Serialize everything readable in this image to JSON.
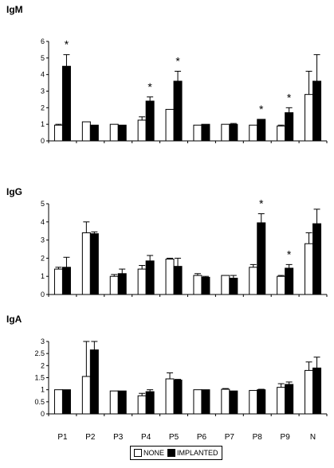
{
  "chart_data": [
    {
      "type": "bar",
      "title": "IgM",
      "categories": [
        "P1",
        "P2",
        "P3",
        "P4",
        "P5",
        "P6",
        "P7",
        "P8",
        "P9",
        "N"
      ],
      "ylim": [
        0,
        6
      ],
      "yticks": [
        "0",
        "1",
        "2",
        "3",
        "4",
        "5",
        "6"
      ],
      "series": [
        {
          "name": "NONE",
          "color": "#ffffff",
          "values": [
            0.95,
            1.15,
            1.0,
            1.25,
            1.9,
            0.95,
            1.0,
            0.95,
            0.9,
            2.8
          ],
          "errors": [
            0.05,
            0.0,
            0.0,
            0.2,
            0.0,
            0.0,
            0.0,
            0.0,
            0.05,
            1.4
          ]
        },
        {
          "name": "IMPLANTED",
          "color": "#000000",
          "values": [
            4.5,
            0.95,
            0.95,
            2.4,
            3.6,
            1.0,
            1.0,
            1.3,
            1.7,
            3.6
          ],
          "errors": [
            0.7,
            0.0,
            0.0,
            0.25,
            0.6,
            0.0,
            0.05,
            0.0,
            0.3,
            1.6
          ]
        }
      ],
      "significant": [
        0,
        3,
        4,
        7,
        8
      ],
      "significance_marker": "*"
    },
    {
      "type": "bar",
      "title": "IgG",
      "categories": [
        "P1",
        "P2",
        "P3",
        "P4",
        "P5",
        "P6",
        "P7",
        "P8",
        "P9",
        "N"
      ],
      "ylim": [
        0,
        5
      ],
      "yticks": [
        "0",
        "1",
        "2",
        "3",
        "4",
        "5"
      ],
      "series": [
        {
          "name": "NONE",
          "color": "#ffffff",
          "values": [
            1.4,
            3.4,
            1.0,
            1.4,
            1.95,
            1.05,
            1.05,
            1.5,
            1.0,
            2.8
          ],
          "errors": [
            0.1,
            0.6,
            0.1,
            0.2,
            0.05,
            0.1,
            0.0,
            0.15,
            0.05,
            0.6
          ]
        },
        {
          "name": "IMPLANTED",
          "color": "#000000",
          "values": [
            1.5,
            3.35,
            1.15,
            1.85,
            1.55,
            0.95,
            0.9,
            3.95,
            1.45,
            3.9
          ],
          "errors": [
            0.55,
            0.1,
            0.25,
            0.3,
            0.45,
            0.05,
            0.15,
            0.5,
            0.2,
            0.8
          ]
        }
      ],
      "significant": [
        7,
        8
      ],
      "significance_marker": "*"
    },
    {
      "type": "bar",
      "title": "IgA",
      "categories": [
        "P1",
        "P2",
        "P3",
        "P4",
        "P5",
        "P6",
        "P7",
        "P8",
        "P9",
        "N"
      ],
      "ylim": [
        0,
        3
      ],
      "yticks": [
        "0",
        "0.5",
        "1",
        "1.5",
        "2",
        "2.5",
        "3"
      ],
      "series": [
        {
          "name": "NONE",
          "color": "#ffffff",
          "values": [
            1.0,
            1.55,
            0.95,
            0.75,
            1.45,
            1.0,
            1.02,
            0.97,
            1.1,
            1.8
          ],
          "errors": [
            0.0,
            1.45,
            0.0,
            0.1,
            0.25,
            0.0,
            0.03,
            0.0,
            0.15,
            0.35
          ]
        },
        {
          "name": "IMPLANTED",
          "color": "#000000",
          "values": [
            1.0,
            2.65,
            0.95,
            0.92,
            1.4,
            1.0,
            0.95,
            1.0,
            1.22,
            1.9
          ],
          "errors": [
            0.0,
            0.35,
            0.0,
            0.08,
            0.03,
            0.0,
            0.0,
            0.02,
            0.1,
            0.45
          ]
        }
      ],
      "significant": [],
      "significance_marker": "*"
    }
  ],
  "legend": {
    "items": [
      {
        "label": "NONE",
        "color": "#ffffff"
      },
      {
        "label": "IMPLANTED",
        "color": "#000000"
      }
    ]
  }
}
